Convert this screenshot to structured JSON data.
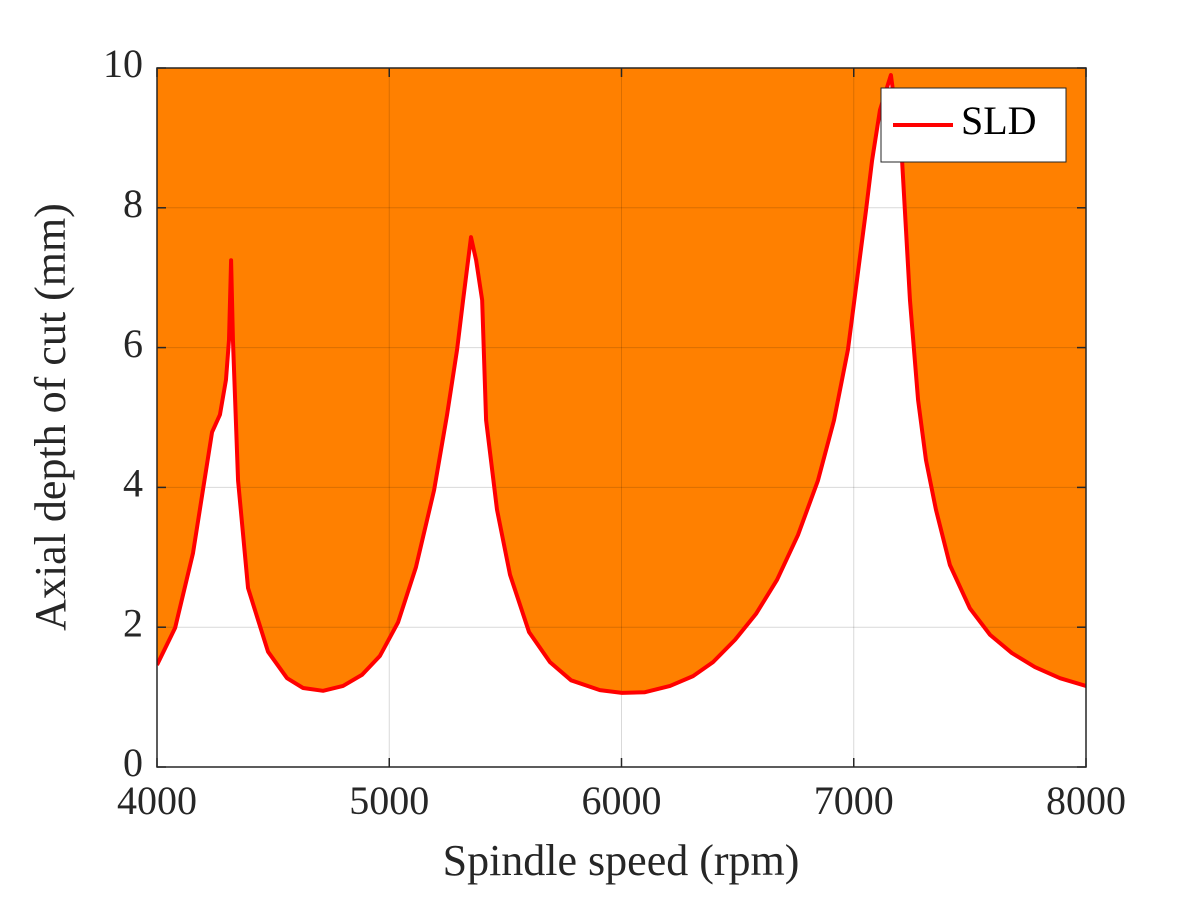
{
  "chart_data": {
    "type": "line",
    "xlabel": "Spindle speed (rpm)",
    "ylabel": "Axial depth of cut (mm)",
    "x": [
      4000,
      4078,
      4155,
      4237,
      4271,
      4297,
      4310,
      4319,
      4327,
      4349,
      4392,
      4478,
      4560,
      4629,
      4715,
      4801,
      4883,
      4960,
      5038,
      5115,
      5193,
      5249,
      5292,
      5318,
      5352,
      5374,
      5400,
      5417,
      5464,
      5520,
      5602,
      5692,
      5783,
      5907,
      6002,
      6101,
      6209,
      6308,
      6394,
      6489,
      6579,
      6670,
      6760,
      6846,
      6915,
      6975,
      7014,
      7053,
      7079,
      7113,
      7160,
      7208,
      7225,
      7242,
      7277,
      7311,
      7354,
      7414,
      7500,
      7587,
      7681,
      7780,
      7888,
      8000
    ],
    "series": [
      {
        "name": "SLD",
        "color": "#ff0000",
        "values": [
          1.46,
          1.99,
          3.06,
          4.79,
          5.04,
          5.54,
          6.11,
          7.25,
          6.11,
          4.1,
          2.56,
          1.65,
          1.27,
          1.13,
          1.09,
          1.16,
          1.32,
          1.59,
          2.07,
          2.86,
          3.96,
          5.04,
          5.97,
          6.68,
          7.58,
          7.25,
          6.68,
          4.96,
          3.68,
          2.75,
          1.93,
          1.5,
          1.24,
          1.1,
          1.06,
          1.07,
          1.16,
          1.3,
          1.5,
          1.82,
          2.19,
          2.68,
          3.32,
          4.1,
          4.96,
          5.97,
          6.97,
          7.97,
          8.68,
          9.4,
          9.9,
          8.68,
          7.68,
          6.68,
          5.25,
          4.39,
          3.68,
          2.89,
          2.27,
          1.89,
          1.63,
          1.43,
          1.27,
          1.16
        ]
      }
    ],
    "fill_color": "#ff8000",
    "xlim": [
      4000,
      8000
    ],
    "xticks": [
      4000,
      5000,
      6000,
      7000,
      8000
    ],
    "ylim": [
      0,
      10
    ],
    "yticks": [
      0,
      2,
      4,
      6,
      8,
      10
    ],
    "grid": true,
    "legend": "upper right"
  }
}
